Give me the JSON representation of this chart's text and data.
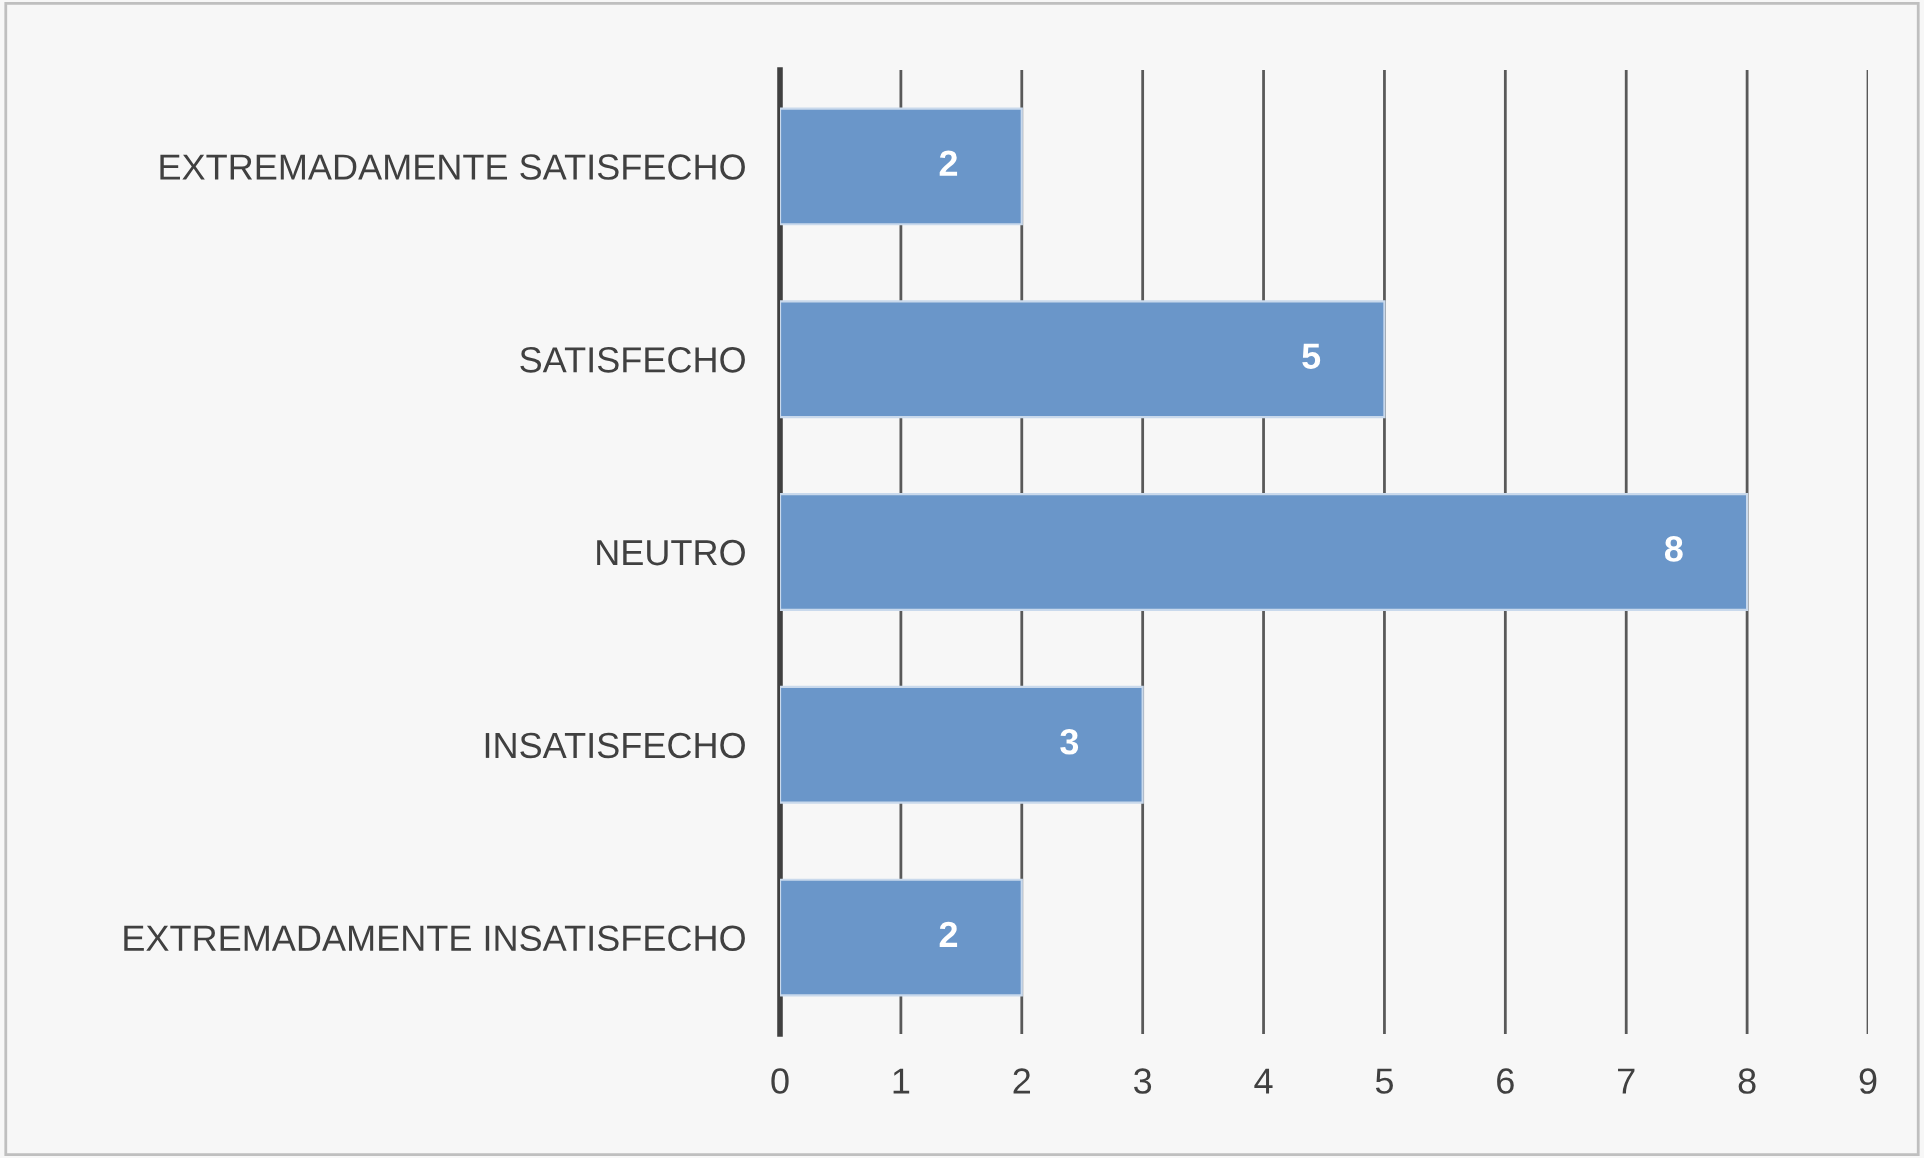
{
  "chart_data": {
    "type": "bar",
    "orientation": "horizontal",
    "categories": [
      "EXTREMADAMENTE SATISFECHO",
      "SATISFECHO",
      "NEUTRO",
      "INSATISFECHO",
      "EXTREMADAMENTE INSATISFECHO"
    ],
    "values": [
      2,
      5,
      8,
      3,
      2
    ],
    "color": "#6a96c9",
    "xlim": [
      0,
      9
    ],
    "xticks": [
      0,
      1,
      2,
      3,
      4,
      5,
      6,
      7,
      8,
      9
    ],
    "grid": "x",
    "data_labels": true,
    "legend": false
  }
}
